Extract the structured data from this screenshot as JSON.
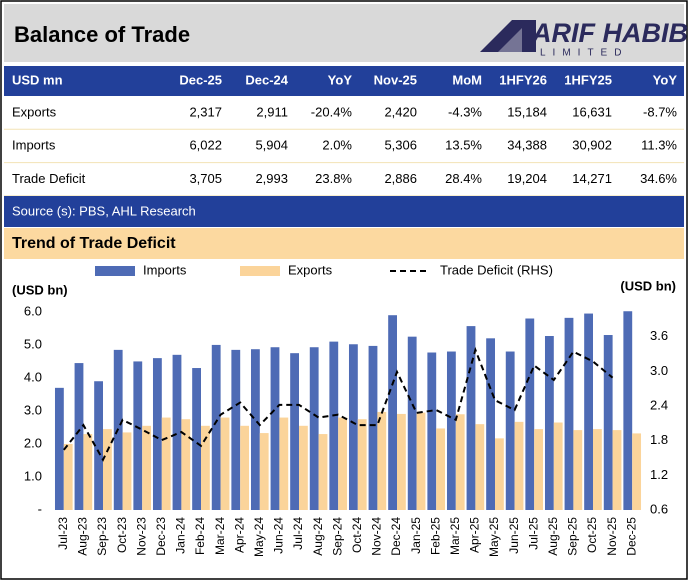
{
  "header": {
    "title": "Balance of Trade",
    "logo": "ARIF HABIB",
    "logo_sub": "LIMITED"
  },
  "table": {
    "columns": [
      "USD mn",
      "Dec-25",
      "Dec-24",
      "YoY",
      "Nov-25",
      "MoM",
      "1HFY26",
      "1HFY25",
      "YoY"
    ],
    "rows": [
      [
        "Exports",
        "2,317",
        "2,911",
        "-20.4%",
        "2,420",
        "-4.3%",
        "15,184",
        "16,631",
        "-8.7%"
      ],
      [
        "Imports",
        "6,022",
        "5,904",
        "2.0%",
        "5,306",
        "13.5%",
        "34,388",
        "30,902",
        "11.3%"
      ],
      [
        "Trade Deficit",
        "3,705",
        "2,993",
        "23.8%",
        "2,886",
        "28.4%",
        "19,204",
        "14,271",
        "34.6%"
      ]
    ],
    "source": "Source (s): PBS, AHL Research"
  },
  "section_title": "Trend of Trade Deficit",
  "chart_data": {
    "type": "bar",
    "ylabel": "(USD bn)",
    "y2label": "(USD bn)",
    "categories": [
      "Jul-23",
      "Aug-23",
      "Sep-23",
      "Oct-23",
      "Nov-23",
      "Dec-23",
      "Jan-24",
      "Feb-24",
      "Mar-24",
      "Apr-24",
      "May-24",
      "Jun-24",
      "Jul-24",
      "Aug-24",
      "Sep-24",
      "Oct-24",
      "Nov-24",
      "Dec-24",
      "Jan-25",
      "Feb-25",
      "Mar-25",
      "Apr-25",
      "May-25",
      "Jun-25",
      "Jul-25",
      "Aug-25",
      "Sep-25",
      "Oct-25",
      "Nov-25",
      "Dec-25"
    ],
    "series": [
      {
        "name": "Imports",
        "type": "bar",
        "color": "#4e6bb5",
        "values": [
          3.7,
          4.45,
          3.9,
          4.85,
          4.5,
          4.6,
          4.7,
          4.3,
          5.0,
          4.85,
          4.87,
          4.93,
          4.75,
          4.93,
          5.1,
          5.02,
          4.97,
          5.9,
          5.25,
          4.77,
          4.8,
          5.57,
          5.2,
          4.8,
          5.8,
          5.27,
          5.82,
          5.95,
          5.3,
          6.02
        ]
      },
      {
        "name": "Exports",
        "type": "bar",
        "color": "#fbd49a",
        "values": [
          2.0,
          2.3,
          2.45,
          2.35,
          2.55,
          2.8,
          2.75,
          2.55,
          2.8,
          2.55,
          2.33,
          2.8,
          2.55,
          2.3,
          2.8,
          2.75,
          2.97,
          2.91,
          2.95,
          2.47,
          2.9,
          2.6,
          2.17,
          2.67,
          2.45,
          2.65,
          2.42,
          2.45,
          2.42,
          2.32
        ]
      },
      {
        "name": "Trade Deficit (RHS)",
        "type": "line",
        "axis": "y2",
        "color": "#000000",
        "linestyle": "dashed",
        "values": [
          1.64,
          2.07,
          1.47,
          2.16,
          1.99,
          1.81,
          1.95,
          1.71,
          2.25,
          2.46,
          2.07,
          2.42,
          2.42,
          2.2,
          2.25,
          2.07,
          2.07,
          2.99,
          2.28,
          2.33,
          2.16,
          3.37,
          2.5,
          2.33,
          3.1,
          2.85,
          3.34,
          3.17,
          2.89,
          null
        ]
      }
    ],
    "ylim": [
      0,
      6.3
    ],
    "yticks": [
      {
        "value": 0,
        "label": "-"
      },
      {
        "value": 1,
        "label": "1.0"
      },
      {
        "value": 2,
        "label": "2.0"
      },
      {
        "value": 3,
        "label": "3.0"
      },
      {
        "value": 4,
        "label": "4.0"
      },
      {
        "value": 5,
        "label": "5.0"
      },
      {
        "value": 6,
        "label": "6.0"
      }
    ],
    "y2lim": [
      0.6,
      4.2
    ],
    "y2ticks": [
      0.6,
      1.2,
      1.8,
      2.4,
      {
        "value": 3,
        "label": "3.0"
      },
      3.6
    ],
    "legend": "top"
  }
}
